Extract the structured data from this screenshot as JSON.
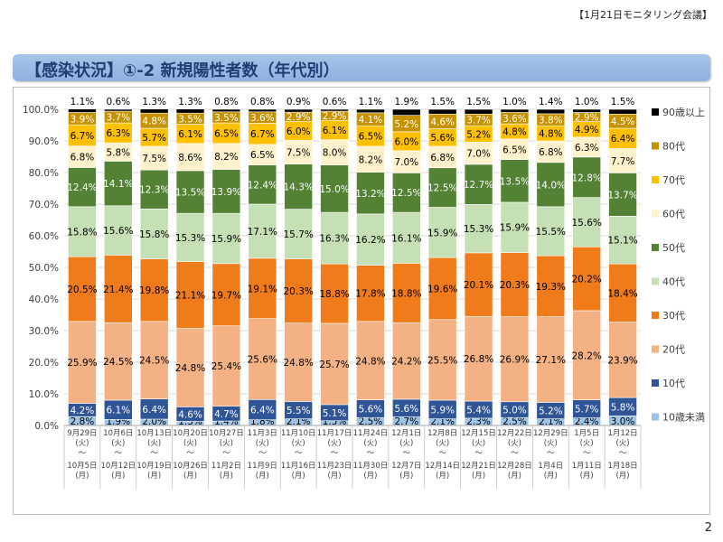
{
  "header": {
    "meeting": "【1月21日モニタリング会議】",
    "page_number": "2"
  },
  "title": "【感染状況】①-2 新規陽性者数（年代別）",
  "chart_data": {
    "type": "bar",
    "stacked": "percent",
    "ylim": [
      0,
      100
    ],
    "yticks": [
      "0.0%",
      "10.0%",
      "20.0%",
      "30.0%",
      "40.0%",
      "50.0%",
      "60.0%",
      "70.0%",
      "80.0%",
      "90.0%",
      "100.0%"
    ],
    "categories": [
      {
        "start": "9月29日",
        "start_day": "(火)",
        "tilde": "〜",
        "end": "10月5日",
        "end_day": "(月)"
      },
      {
        "start": "10月6日",
        "start_day": "(火)",
        "tilde": "〜",
        "end": "10月12日",
        "end_day": "(月)"
      },
      {
        "start": "10月13日",
        "start_day": "(火)",
        "tilde": "〜",
        "end": "10月19日",
        "end_day": "(月)"
      },
      {
        "start": "10月20日",
        "start_day": "(火)",
        "tilde": "〜",
        "end": "10月26日",
        "end_day": "(月)"
      },
      {
        "start": "10月27日",
        "start_day": "(火)",
        "tilde": "〜",
        "end": "11月2日",
        "end_day": "(月)"
      },
      {
        "start": "11月3日",
        "start_day": "(火)",
        "tilde": "〜",
        "end": "11月9日",
        "end_day": "(月)"
      },
      {
        "start": "11月10日",
        "start_day": "(火)",
        "tilde": "〜",
        "end": "11月16日",
        "end_day": "(月)"
      },
      {
        "start": "11月17日",
        "start_day": "(火)",
        "tilde": "〜",
        "end": "11月23日",
        "end_day": "(月)"
      },
      {
        "start": "11月24日",
        "start_day": "(火)",
        "tilde": "〜",
        "end": "11月30日",
        "end_day": "(月)"
      },
      {
        "start": "12月1日",
        "start_day": "(火)",
        "tilde": "〜",
        "end": "12月7日",
        "end_day": "(月)"
      },
      {
        "start": "12月8日",
        "start_day": "(火)",
        "tilde": "〜",
        "end": "12月14日",
        "end_day": "(月)"
      },
      {
        "start": "12月15日",
        "start_day": "(火)",
        "tilde": "〜",
        "end": "12月21日",
        "end_day": "(月)"
      },
      {
        "start": "12月22日",
        "start_day": "(火)",
        "tilde": "〜",
        "end": "12月28日",
        "end_day": "(月)"
      },
      {
        "start": "12月29日",
        "start_day": "(火)",
        "tilde": "〜",
        "end": "1月4日",
        "end_day": "(月)"
      },
      {
        "start": "1月5日",
        "start_day": "(火)",
        "tilde": "〜",
        "end": "1月11日",
        "end_day": "(月)"
      },
      {
        "start": "1月12日",
        "start_day": "(火)",
        "tilde": "〜",
        "end": "1月18日",
        "end_day": "(月)"
      }
    ],
    "series": [
      {
        "name": "10歳未満",
        "color": "#9dc3e6",
        "label_color": "#000000",
        "values": [
          2.8,
          1.9,
          2.0,
          1.3,
          1.4,
          1.8,
          2.1,
          1.5,
          2.5,
          2.7,
          2.1,
          2.3,
          2.5,
          2.1,
          2.4,
          3.0
        ]
      },
      {
        "name": "10代",
        "color": "#2f5597",
        "label_color": "#ffffff",
        "values": [
          4.2,
          6.1,
          6.4,
          4.6,
          4.7,
          6.4,
          5.5,
          5.1,
          5.6,
          5.6,
          5.9,
          5.4,
          5.0,
          5.2,
          5.7,
          5.8
        ]
      },
      {
        "name": "20代",
        "color": "#f4b183",
        "label_color": "#000000",
        "values": [
          25.9,
          24.5,
          24.5,
          24.8,
          25.4,
          25.6,
          24.8,
          25.7,
          24.8,
          24.2,
          25.5,
          26.8,
          26.9,
          27.1,
          28.2,
          23.9
        ]
      },
      {
        "name": "30代",
        "color": "#f07b1b",
        "label_color": "#000000",
        "values": [
          20.5,
          21.4,
          19.8,
          21.1,
          19.7,
          19.1,
          20.3,
          18.8,
          17.8,
          18.8,
          19.6,
          20.1,
          20.3,
          19.3,
          20.2,
          18.4
        ]
      },
      {
        "name": "40代",
        "color": "#c5e0b4",
        "label_color": "#000000",
        "values": [
          15.8,
          15.6,
          15.8,
          15.3,
          15.9,
          17.1,
          15.7,
          16.3,
          16.2,
          16.1,
          15.9,
          15.3,
          15.9,
          15.5,
          15.6,
          15.1
        ]
      },
      {
        "name": "50代",
        "color": "#548235",
        "label_color": "#ffffff",
        "values": [
          12.4,
          14.1,
          12.3,
          13.5,
          13.9,
          12.4,
          14.3,
          15.0,
          13.2,
          12.5,
          12.5,
          12.7,
          13.5,
          14.0,
          12.8,
          13.7
        ]
      },
      {
        "name": "60代",
        "color": "#fff2cc",
        "label_color": "#000000",
        "values": [
          6.8,
          5.8,
          7.5,
          8.6,
          8.2,
          6.5,
          7.5,
          8.0,
          8.2,
          7.0,
          6.8,
          7.0,
          6.5,
          6.8,
          6.3,
          7.7
        ]
      },
      {
        "name": "70代",
        "color": "#ffc000",
        "label_color": "#000000",
        "values": [
          6.7,
          6.3,
          5.7,
          6.1,
          6.5,
          6.7,
          6.0,
          6.1,
          6.5,
          6.0,
          5.6,
          5.2,
          4.8,
          4.8,
          4.9,
          6.4
        ]
      },
      {
        "name": "80代",
        "color": "#c79200",
        "label_color": "#ffffff",
        "values": [
          3.9,
          3.7,
          4.8,
          3.5,
          3.5,
          3.6,
          2.9,
          2.9,
          4.1,
          5.2,
          4.6,
          3.7,
          3.6,
          3.8,
          2.9,
          4.5
        ]
      },
      {
        "name": "90歳以上",
        "color": "#000000",
        "label_color": "#000000",
        "values": [
          1.1,
          0.6,
          1.3,
          1.3,
          0.8,
          0.8,
          0.9,
          0.6,
          1.1,
          1.9,
          1.5,
          1.5,
          1.0,
          1.4,
          1.0,
          1.5
        ]
      }
    ]
  }
}
